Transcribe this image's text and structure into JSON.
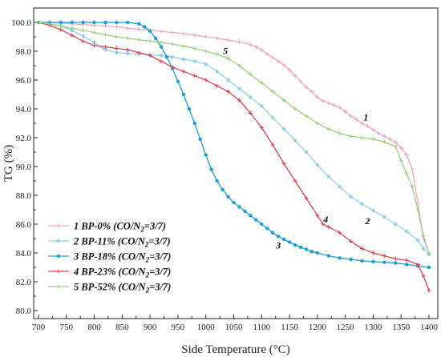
{
  "chart_data": {
    "type": "line",
    "title": "",
    "xlabel": "Side Temperature (°C)",
    "ylabel": "TG (%)",
    "xlim": [
      700,
      1400
    ],
    "ylim": [
      80,
      100
    ],
    "xticks": [
      700,
      750,
      800,
      850,
      900,
      950,
      1000,
      1050,
      1100,
      1150,
      1200,
      1250,
      1300,
      1350,
      1400
    ],
    "yticks": [
      "80.0",
      "82.0",
      "84.0",
      "86.0",
      "88.0",
      "90.0",
      "92.0",
      "94.0",
      "96.0",
      "98.0",
      "100.0"
    ],
    "grid": false,
    "legend_position": "bottom-left",
    "series": [
      {
        "name": "1 BP-0% (CO/N2=3/7)",
        "label_parts": [
          "1 BP-0% (CO/N",
          "2",
          "=3/7)"
        ],
        "color": "#f0a6bd",
        "marker": "plus",
        "x": [
          700,
          720,
          740,
          760,
          780,
          800,
          820,
          840,
          860,
          880,
          900,
          920,
          940,
          960,
          980,
          1000,
          1020,
          1040,
          1060,
          1080,
          1090,
          1100,
          1110,
          1120,
          1130,
          1140,
          1150,
          1160,
          1170,
          1180,
          1190,
          1200,
          1210,
          1220,
          1230,
          1240,
          1250,
          1260,
          1270,
          1280,
          1290,
          1300,
          1310,
          1320,
          1330,
          1340,
          1350,
          1360,
          1370,
          1380,
          1390,
          1400
        ],
        "y": [
          100,
          99.98,
          99.95,
          99.9,
          99.85,
          99.8,
          99.75,
          99.7,
          99.6,
          99.52,
          99.45,
          99.38,
          99.3,
          99.22,
          99.12,
          99.0,
          98.9,
          98.78,
          98.65,
          98.45,
          98.3,
          98.1,
          97.8,
          97.55,
          97.3,
          97.05,
          96.7,
          96.3,
          95.9,
          95.5,
          95.2,
          94.8,
          94.55,
          94.4,
          94.25,
          94.1,
          93.8,
          93.5,
          93.25,
          93.0,
          92.8,
          92.55,
          92.3,
          92.1,
          91.9,
          91.7,
          91.3,
          90.8,
          89.8,
          87.5,
          85.0,
          84.0
        ]
      },
      {
        "name": "2 BP-11% (CO/N2=3/7)",
        "label_parts": [
          "2 BP-11% (CO/N",
          "2",
          "=3/7)"
        ],
        "color": "#8fd0ef",
        "marker": "dot",
        "x": [
          700,
          720,
          740,
          760,
          780,
          800,
          820,
          840,
          860,
          880,
          900,
          920,
          940,
          960,
          980,
          1000,
          1020,
          1040,
          1060,
          1080,
          1100,
          1120,
          1140,
          1160,
          1180,
          1200,
          1220,
          1240,
          1260,
          1280,
          1300,
          1320,
          1340,
          1360,
          1380,
          1390,
          1400
        ],
        "y": [
          100,
          99.92,
          99.75,
          99.45,
          99.05,
          98.6,
          98.1,
          97.9,
          97.85,
          97.8,
          97.75,
          97.7,
          97.6,
          97.45,
          97.3,
          97.1,
          96.6,
          96.0,
          95.4,
          94.8,
          94.2,
          93.4,
          92.6,
          91.8,
          91.0,
          90.1,
          89.3,
          88.6,
          87.9,
          87.4,
          86.95,
          86.5,
          86.0,
          85.5,
          84.9,
          84.3,
          83.9
        ]
      },
      {
        "name": "3 BP-18% (CO/N2=3/7)",
        "label_parts": [
          "3 BP-18% (CO/N",
          "2",
          "=3/7)"
        ],
        "color": "#1a9ed8",
        "marker": "dot",
        "x": [
          700,
          720,
          740,
          760,
          780,
          800,
          820,
          840,
          860,
          880,
          890,
          900,
          910,
          920,
          930,
          940,
          950,
          960,
          970,
          980,
          990,
          1000,
          1010,
          1020,
          1030,
          1040,
          1050,
          1060,
          1070,
          1080,
          1090,
          1100,
          1110,
          1120,
          1130,
          1140,
          1150,
          1160,
          1170,
          1180,
          1190,
          1200,
          1220,
          1240,
          1260,
          1280,
          1300,
          1320,
          1340,
          1360,
          1380,
          1400
        ],
        "y": [
          100,
          100,
          100,
          100,
          100,
          100,
          100,
          100,
          100,
          99.9,
          99.7,
          99.4,
          98.9,
          98.3,
          97.6,
          96.8,
          95.9,
          95.0,
          94.0,
          93.0,
          91.9,
          90.8,
          89.8,
          89.0,
          88.4,
          87.9,
          87.5,
          87.2,
          86.9,
          86.6,
          86.3,
          86.0,
          85.7,
          85.4,
          85.15,
          84.95,
          84.75,
          84.55,
          84.4,
          84.25,
          84.1,
          84.0,
          83.8,
          83.65,
          83.55,
          83.45,
          83.4,
          83.35,
          83.3,
          83.2,
          83.1,
          83.0
        ]
      },
      {
        "name": "4 BP-23% (CO/N2=3/7)",
        "label_parts": [
          "4 BP-23% (CO/N",
          "2",
          "=3/7)"
        ],
        "color": "#e3424f",
        "marker": "plus",
        "x": [
          700,
          720,
          740,
          760,
          780,
          800,
          820,
          840,
          860,
          880,
          900,
          920,
          940,
          960,
          980,
          1000,
          1020,
          1040,
          1060,
          1080,
          1100,
          1120,
          1140,
          1160,
          1180,
          1200,
          1210,
          1220,
          1240,
          1260,
          1280,
          1300,
          1320,
          1340,
          1360,
          1380,
          1390,
          1400
        ],
        "y": [
          100,
          99.8,
          99.5,
          99.1,
          98.7,
          98.4,
          98.3,
          98.2,
          98.1,
          97.9,
          97.7,
          97.3,
          96.9,
          96.6,
          96.3,
          96.0,
          95.6,
          95.2,
          94.6,
          93.7,
          92.7,
          91.5,
          90.2,
          89.0,
          87.8,
          86.6,
          86.0,
          85.8,
          85.4,
          84.8,
          84.3,
          84.0,
          83.8,
          83.6,
          83.5,
          83.2,
          82.4,
          81.4
        ]
      },
      {
        "name": "5 BP-52% (CO/N2=3/7)",
        "label_parts": [
          "5 BP-52% (CO/N",
          "2",
          "=3/7)"
        ],
        "color": "#9ad07f",
        "marker": "plus",
        "x": [
          700,
          720,
          740,
          760,
          780,
          800,
          820,
          840,
          860,
          880,
          900,
          920,
          940,
          960,
          980,
          1000,
          1020,
          1040,
          1060,
          1080,
          1100,
          1120,
          1140,
          1160,
          1180,
          1200,
          1220,
          1240,
          1260,
          1280,
          1300,
          1320,
          1340,
          1350,
          1360,
          1370,
          1380,
          1390,
          1400
        ],
        "y": [
          100,
          99.9,
          99.75,
          99.6,
          99.45,
          99.3,
          99.15,
          99.0,
          98.9,
          98.8,
          98.7,
          98.6,
          98.5,
          98.35,
          98.2,
          98.0,
          97.8,
          97.5,
          97.0,
          96.4,
          95.8,
          95.2,
          94.6,
          94.0,
          93.5,
          93.0,
          92.6,
          92.3,
          92.1,
          92.0,
          91.9,
          91.7,
          91.4,
          90.4,
          89.5,
          88.6,
          87.0,
          85.2,
          84.0
        ]
      }
    ],
    "annotations": [
      {
        "text": "1",
        "x": 1287,
        "y": 93.2
      },
      {
        "text": "2",
        "x": 1290,
        "y": 86.0
      },
      {
        "text": "3",
        "x": 1130,
        "y": 84.3
      },
      {
        "text": "4",
        "x": 1215,
        "y": 86.1
      },
      {
        "text": "5",
        "x": 1035,
        "y": 97.8
      }
    ]
  }
}
